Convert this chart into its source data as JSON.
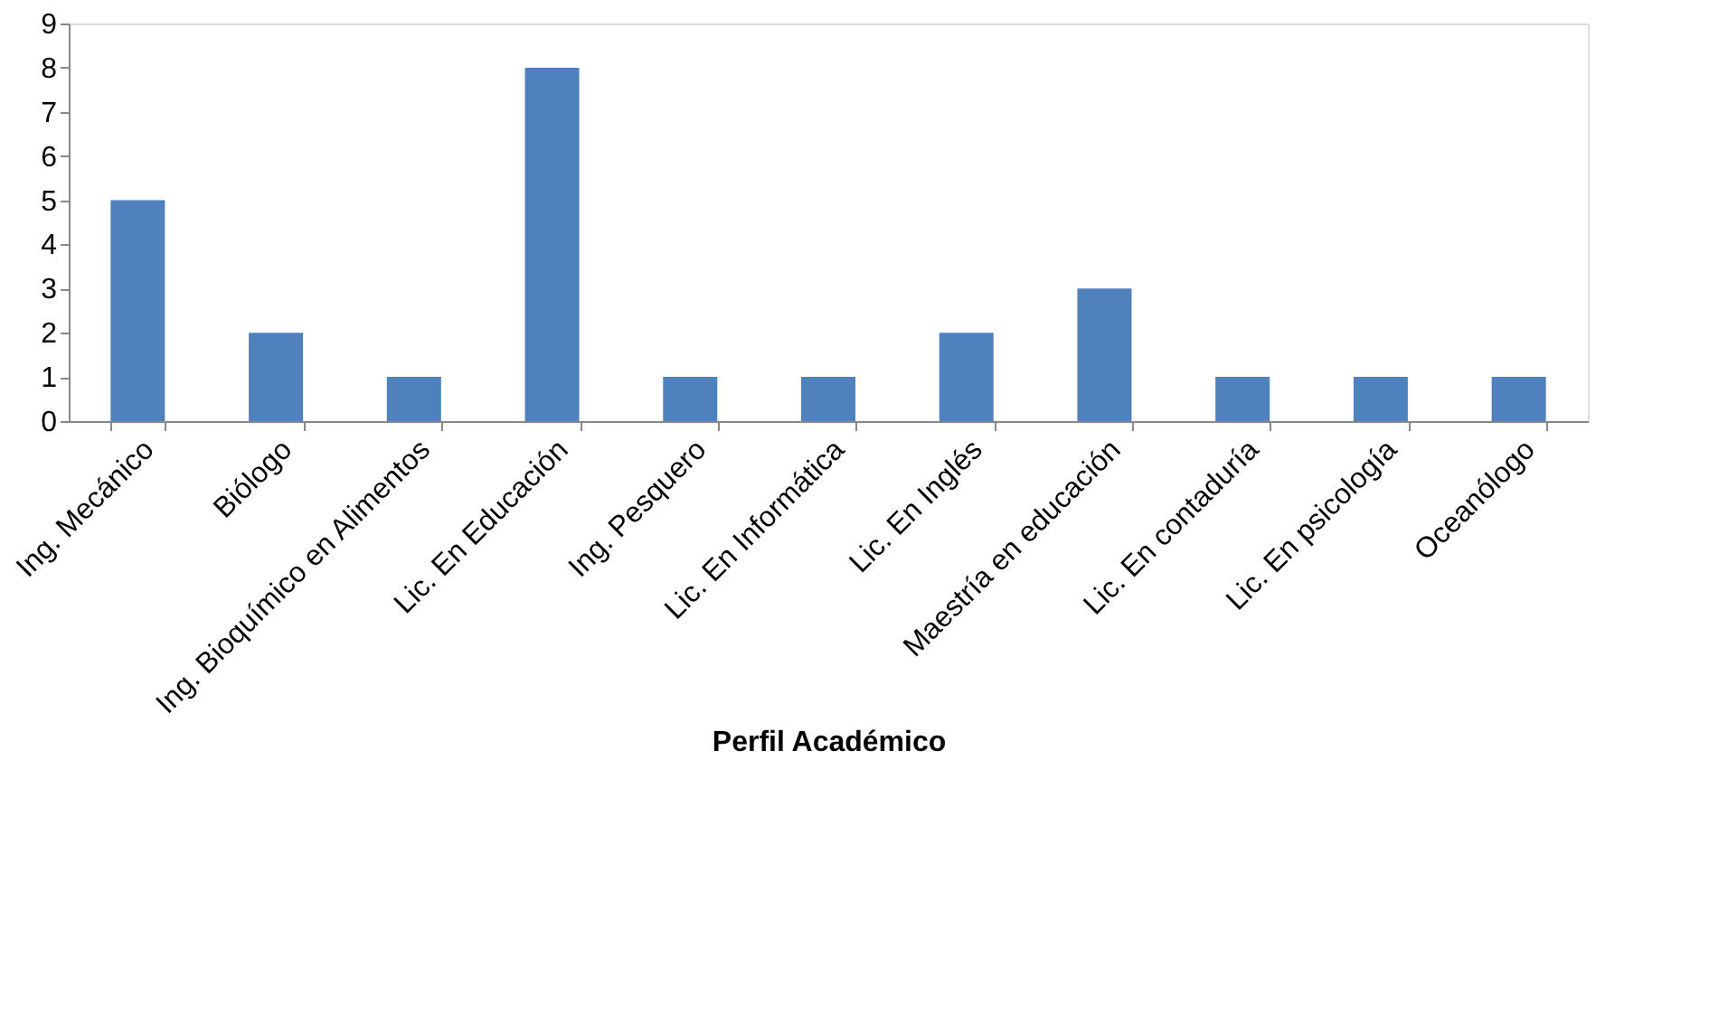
{
  "chart_data": {
    "type": "bar",
    "xlabel": "Perfil Académico",
    "categories": [
      "Ing. Mecánico",
      "Biólogo",
      "Ing. Bioquímico en Alimentos",
      "Lic. En Educación",
      "Ing. Pesquero",
      "Lic. En Informática",
      "Lic. En Inglés",
      "Maestría en educación",
      "Lic. En contaduría",
      "Lic. En psicología",
      "Oceanólogo"
    ],
    "values": [
      5,
      2,
      1,
      8,
      1,
      1,
      2,
      3,
      1,
      1,
      1
    ],
    "color": "#4f81bd",
    "ylim": [
      0,
      9
    ],
    "yticks": [
      0,
      1,
      2,
      3,
      4,
      5,
      6,
      7,
      8,
      9
    ],
    "grid": false
  }
}
